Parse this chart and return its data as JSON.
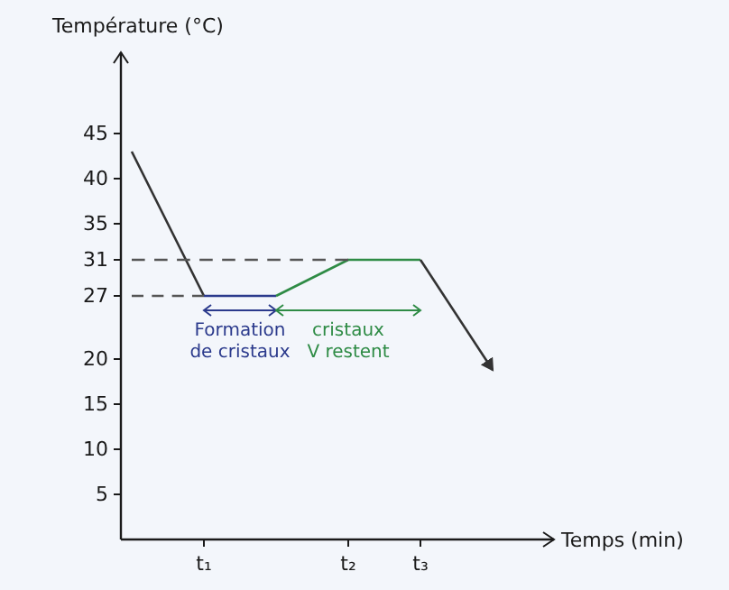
{
  "chart_data": {
    "type": "line",
    "ylabel": "Température (°C)",
    "xlabel": "Temps (min)",
    "categories": [
      null,
      "t₁",
      null,
      "t₂",
      "t₃",
      null
    ],
    "ylim": [
      0,
      54
    ],
    "yticks": [
      5,
      10,
      15,
      20,
      27,
      31,
      35,
      40,
      45
    ],
    "series": [
      {
        "color": "#333333",
        "values": [
          43,
          27,
          null,
          null,
          null,
          null
        ]
      },
      {
        "color": "#2b3a8c",
        "values": [
          null,
          27,
          27,
          null,
          null,
          null
        ]
      },
      {
        "color": "#2e8b45",
        "values": [
          null,
          null,
          27,
          31,
          31,
          null
        ]
      },
      {
        "color": "#333333",
        "values": [
          null,
          null,
          null,
          null,
          31,
          18.8
        ]
      },
      {
        "color": "#555555",
        "line_style": "dashed",
        "values": [
          31,
          31,
          31,
          31,
          null,
          null
        ]
      },
      {
        "color": "#555555",
        "line_style": "dashed",
        "values": [
          27,
          27,
          null,
          null,
          null,
          null
        ]
      }
    ],
    "annotations": [
      "Formation de cristaux",
      "cristaux V restent"
    ]
  }
}
